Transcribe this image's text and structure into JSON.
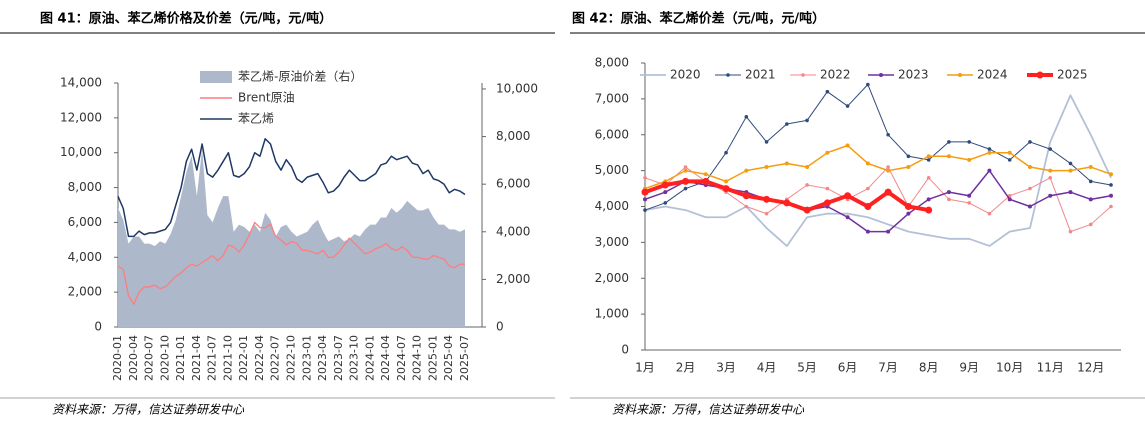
{
  "chart_data": [
    {
      "type": "line",
      "title": "图 41：原油、苯乙烯价格及价差（元/吨，元/吨）",
      "source": "资料来源：万得，信达证券研发中心",
      "categories": [
        "2020-01",
        null,
        null,
        "2020-04",
        null,
        null,
        "2020-07",
        null,
        null,
        "2020-10",
        null,
        null,
        "2021-01",
        null,
        null,
        "2021-04",
        null,
        null,
        "2021-07",
        null,
        null,
        "2021-10",
        null,
        null,
        "2022-01",
        null,
        null,
        "2022-04",
        null,
        null,
        "2022-07",
        null,
        null,
        "2022-10",
        null,
        null,
        "2023-01",
        null,
        null,
        "2023-04",
        null,
        null,
        "2023-07",
        null,
        null,
        "2023-10",
        null,
        null,
        "2024-01",
        null,
        null,
        "2024-04",
        null,
        null,
        "2024-07",
        null,
        null,
        "2024-10",
        null,
        null,
        "2025-01",
        null,
        null,
        "2025-04",
        null,
        null,
        "2025-07"
      ],
      "ylim": [
        0,
        14000
      ],
      "yticks": [
        0,
        {
          "value": 2000,
          "label": "2,000"
        },
        {
          "value": 4000,
          "label": "4,000"
        },
        {
          "value": 6000,
          "label": "6,000"
        },
        {
          "value": 8000,
          "label": "8,000"
        },
        {
          "value": 10000,
          "label": "10,000"
        },
        {
          "value": 12000,
          "label": "12,000"
        },
        {
          "value": 14000,
          "label": "14,000"
        }
      ],
      "y2lim": [
        0,
        10250
      ],
      "y2ticks": [
        0,
        {
          "value": 2000,
          "label": "2,000"
        },
        {
          "value": 4000,
          "label": "4,000"
        },
        {
          "value": 6000,
          "label": "6,000"
        },
        {
          "value": 8000,
          "label": "8,000"
        },
        {
          "value": 10000,
          "label": "10,000"
        }
      ],
      "series": [
        {
          "name": "苯乙烯-原油价差（右）",
          "color": "#adb9ca",
          "style": "area",
          "axis": "y2",
          "values": [
            5000,
            4500,
            3500,
            3800,
            3800,
            3500,
            3500,
            3400,
            3600,
            3500,
            3900,
            4500,
            5500,
            6500,
            7200,
            5500,
            7500,
            4700,
            4400,
            5000,
            5500,
            5500,
            4000,
            4300,
            4200,
            4000,
            4300,
            4000,
            4800,
            4500,
            3800,
            4200,
            4300,
            4000,
            3800,
            3900,
            4000,
            4300,
            4500,
            4000,
            3600,
            3700,
            3800,
            3600,
            3700,
            3900,
            3800,
            4100,
            4300,
            4300,
            4600,
            4600,
            5000,
            4800,
            5000,
            5300,
            5100,
            4900,
            4900,
            5000,
            4600,
            4300,
            4300,
            4100,
            4100,
            4000,
            4100
          ]
        },
        {
          "name": "Brent原油",
          "color": "#ff7c80",
          "values": [
            3500,
            3300,
            1800,
            1300,
            2000,
            2300,
            2300,
            2400,
            2200,
            2300,
            2600,
            2900,
            3100,
            3400,
            3600,
            3500,
            3700,
            3900,
            4100,
            3800,
            4100,
            4700,
            4600,
            4300,
            4700,
            5300,
            6000,
            5700,
            5700,
            5900,
            5200,
            5000,
            4700,
            4900,
            4800,
            4400,
            4400,
            4300,
            4200,
            4400,
            4000,
            4000,
            4300,
            4700,
            5100,
            4800,
            4500,
            4200,
            4300,
            4500,
            4600,
            4800,
            4500,
            4400,
            4600,
            4400,
            4000,
            4000,
            3900,
            3900,
            4100,
            4000,
            3900,
            3500,
            3400,
            3600,
            3600
          ]
        },
        {
          "name": "苯乙烯",
          "color": "#1f3864",
          "values": [
            7500,
            6800,
            5200,
            5200,
            5500,
            5300,
            5400,
            5400,
            5500,
            5600,
            6000,
            7000,
            8000,
            9500,
            10200,
            9000,
            10500,
            8800,
            8600,
            9000,
            9500,
            10000,
            8700,
            8600,
            8800,
            9200,
            10000,
            9800,
            10800,
            10500,
            9500,
            9000,
            9600,
            9200,
            8500,
            8300,
            8600,
            8700,
            8800,
            8300,
            7700,
            7800,
            8100,
            8600,
            9000,
            8700,
            8400,
            8400,
            8600,
            8800,
            9300,
            9400,
            9800,
            9600,
            9700,
            9800,
            9400,
            9300,
            8800,
            9000,
            8500,
            8400,
            8200,
            7700,
            7900,
            7800,
            7600
          ]
        }
      ]
    },
    {
      "type": "line",
      "title": "图 42：原油、苯乙烯价差（元/吨，元/吨）",
      "source": "资料来源：万得，信达证券研发中心",
      "categories": [
        "1月",
        null,
        "2月",
        null,
        "3月",
        null,
        "4月",
        null,
        "5月",
        null,
        "6月",
        null,
        "7月",
        null,
        "8月",
        null,
        "9月",
        null,
        "10月",
        null,
        "11月",
        null,
        "12月",
        null
      ],
      "ylim": [
        0,
        8000
      ],
      "yticks": [
        0,
        {
          "value": 1000,
          "label": "1,000"
        },
        {
          "value": 2000,
          "label": "2,000"
        },
        {
          "value": 3000,
          "label": "3,000"
        },
        {
          "value": 4000,
          "label": "4,000"
        },
        {
          "value": 5000,
          "label": "5,000"
        },
        {
          "value": 6000,
          "label": "6,000"
        },
        {
          "value": 7000,
          "label": "7,000"
        },
        {
          "value": 8000,
          "label": "8,000"
        }
      ],
      "series": [
        {
          "name": "2020",
          "color": "#b4c0d6",
          "values": [
            3900,
            4000,
            3900,
            3700,
            3700,
            4000,
            3400,
            2900,
            3700,
            3800,
            3800,
            3700,
            3500,
            3300,
            3200,
            3100,
            3100,
            2900,
            3300,
            3400,
            5800,
            7100,
            6000,
            4800
          ]
        },
        {
          "name": "2021",
          "color": "#2f4b7c",
          "markers": true,
          "values": [
            3900,
            4100,
            4500,
            4700,
            5500,
            6500,
            5800,
            6300,
            6400,
            7200,
            6800,
            7400,
            6000,
            5400,
            5300,
            5800,
            5800,
            5600,
            5300,
            5800,
            5600,
            5200,
            4700,
            4600
          ]
        },
        {
          "name": "2022",
          "color": "#f4868a",
          "markers": true,
          "values": [
            4800,
            4600,
            5100,
            4700,
            4400,
            4000,
            3800,
            4200,
            4600,
            4500,
            4200,
            4500,
            5100,
            4000,
            4800,
            4200,
            4100,
            3800,
            4300,
            4500,
            4800,
            3300,
            3500,
            4000
          ]
        },
        {
          "name": "2023",
          "color": "#7030a0",
          "markers": true,
          "values": [
            4200,
            4400,
            4700,
            4600,
            4500,
            4400,
            4200,
            4100,
            3900,
            4000,
            3700,
            3300,
            3300,
            3800,
            4200,
            4400,
            4300,
            5000,
            4200,
            4000,
            4300,
            4400,
            4200,
            4300
          ]
        },
        {
          "name": "2024",
          "color": "#f59d0e",
          "markers": true,
          "values": [
            4500,
            4700,
            5000,
            4900,
            4700,
            5000,
            5100,
            5200,
            5100,
            5500,
            5700,
            5200,
            5000,
            5100,
            5400,
            5400,
            5300,
            5500,
            5500,
            5100,
            5000,
            5000,
            5100,
            4900
          ]
        },
        {
          "name": "2025",
          "color": "#ff2020",
          "markers": true,
          "values": [
            4400,
            4600,
            4700,
            4700,
            4500,
            4300,
            4200,
            4100,
            3900,
            4100,
            4300,
            4000,
            4400,
            4000,
            3900,
            null,
            null,
            null,
            null,
            null,
            null,
            null,
            null,
            null
          ]
        }
      ]
    }
  ]
}
